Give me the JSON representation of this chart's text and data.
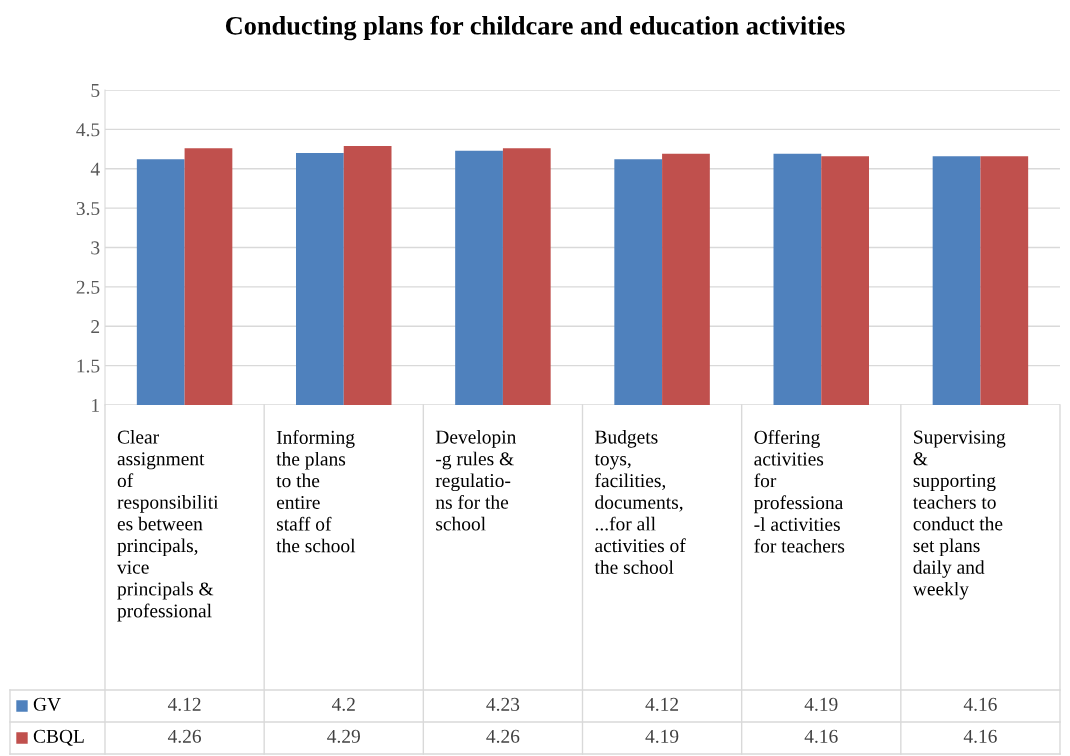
{
  "chart_data": {
    "type": "bar",
    "title": "Conducting plans for childcare and education activities",
    "categories": [
      "Clear\nassignment\nof\nresponsibiliti\nes between\nprincipals,\nvice\nprincipals &\nprofessional",
      "Informing\nthe plans\nto the\nentire\nstaff of\nthe school",
      "Developin\n-g rules &\nregulatio-\nns for the\nschool",
      "Budgets\ntoys,\nfacilities,\ndocuments,\n...for all\nactivities of\nthe school",
      "Offering\nactivities\nfor\nprofessiona\n-l activities\nfor teachers",
      "Supervising\n&\nsupporting\nteachers to\nconduct the\nset plans\ndaily and\nweekly"
    ],
    "series": [
      {
        "name": "GV",
        "color": "#4f81bd",
        "values": [
          4.12,
          4.2,
          4.23,
          4.12,
          4.19,
          4.16
        ]
      },
      {
        "name": "CBQL",
        "color": "#c0504d",
        "values": [
          4.26,
          4.29,
          4.26,
          4.19,
          4.16,
          4.16
        ]
      }
    ],
    "ylim": [
      1,
      5
    ],
    "yticks": [
      1,
      1.5,
      2,
      2.5,
      3,
      3.5,
      4,
      4.5,
      5
    ],
    "grid": "y",
    "legend": "bottom",
    "data_labels": true
  }
}
